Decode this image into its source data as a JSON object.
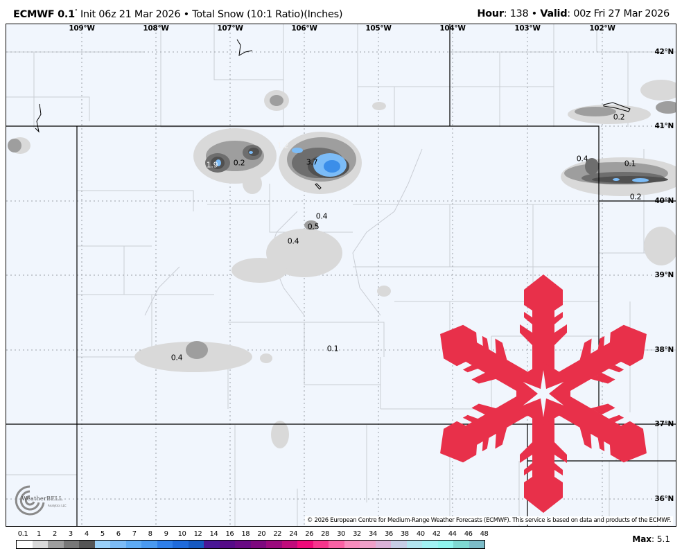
{
  "header": {
    "model": "ECMWF 0.1",
    "init": "Init 06z 21 Mar 2026",
    "product": "Total Snow (10:1 Ratio)(Inches)",
    "hour_label": "Hour",
    "hour": "138",
    "valid_label": "Valid",
    "valid": "00z Fri 27 Mar 2026"
  },
  "map": {
    "longitude_labels": [
      "109°W",
      "108°W",
      "107°W",
      "106°W",
      "105°W",
      "104°W",
      "103°W",
      "102°W"
    ],
    "latitude_labels": [
      "42°N",
      "41°N",
      "40°N",
      "39°N",
      "38°N",
      "37°N",
      "36°N"
    ],
    "value_labels": [
      "1.9",
      "0.2",
      "1.2",
      "3.7",
      "0.4",
      "0.5",
      "0.4",
      "0.4",
      "0.1",
      "0.4",
      "0.1",
      "0.2",
      "0.2"
    ],
    "overlay_icon": "snowflake-icon",
    "overlay_color": "#e8304a",
    "background_color": "#f1f6fd"
  },
  "logo": {
    "text": "WeatherBELL",
    "sub": "Analytics LLC"
  },
  "copyright": "© 2026 European Centre for Medium-Range Weather Forecasts (ECMWF). This service is based on data and products of the ECMWF.",
  "colorbar": {
    "labels": [
      "0.1",
      "1",
      "2",
      "3",
      "4",
      "5",
      "6",
      "7",
      "8",
      "9",
      "10",
      "12",
      "14",
      "16",
      "18",
      "20",
      "22",
      "24",
      "26",
      "28",
      "30",
      "32",
      "34",
      "36",
      "38",
      "40",
      "42",
      "44",
      "46",
      "48"
    ],
    "colors": [
      "#ffffff",
      "#d9d9d9",
      "#9e9e9e",
      "#777777",
      "#555555",
      "#99d0f8",
      "#7cbcf7",
      "#5eabf4",
      "#4a9af0",
      "#2f7fe8",
      "#1f6bdb",
      "#1659c1",
      "#4a1796",
      "#560b88",
      "#690a84",
      "#7e087f",
      "#9c0a7d",
      "#c00b7b",
      "#f00a7a",
      "#f7358c",
      "#fa62a5",
      "#f98cbd",
      "#efa0c9",
      "#dbb2d8",
      "#c7cde6",
      "#b2e4ef",
      "#a2f2f4",
      "#8ff5ee",
      "#7fd9d2",
      "#7cbcc8"
    ],
    "max_label": "Max",
    "max_value": "5.1"
  }
}
